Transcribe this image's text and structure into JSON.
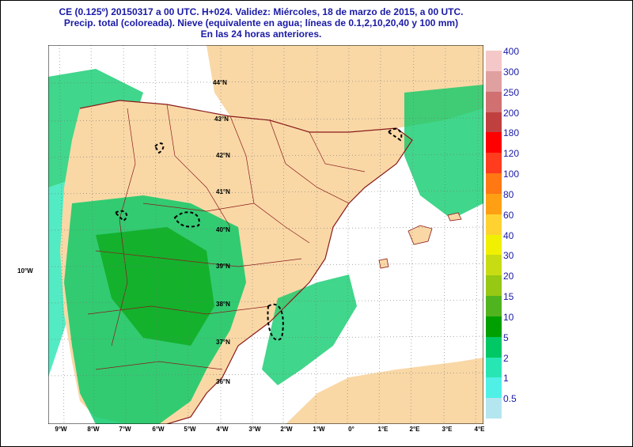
{
  "header": {
    "line1": "CE (0.125º) 20150317 a 00 UTC.  H+024. Validez: Miércoles, 18 de marzo de 2015,  a  00 UTC.",
    "line2": "Precip. total (coloreada). Nieve (equivalente en agua; líneas de 0.1,2,10,20,40 y 100 mm)",
    "line3": "En las 24 horas anteriores."
  },
  "map": {
    "lon_labels": [
      "9°W",
      "8°W",
      "7°W",
      "6°W",
      "5°W",
      "4°W",
      "3°W",
      "2°W",
      "1°W",
      "0°",
      "1°E",
      "2°E",
      "3°E",
      "4°E"
    ],
    "lat_labels": [
      "44°N",
      "43°N",
      "42°N",
      "41°N",
      "40°N",
      "39°N",
      "38°N",
      "37°N",
      "36°N"
    ],
    "side_label": "10°W"
  },
  "legend": {
    "levels": [
      "400",
      "300",
      "250",
      "200",
      "180",
      "120",
      "100",
      "80",
      "60",
      "40",
      "30",
      "20",
      "15",
      "10",
      "5",
      "2",
      "1",
      "0.5"
    ],
    "colors": [
      "#f4c8c8",
      "#e0a0a0",
      "#d07070",
      "#c04040",
      "#ff0000",
      "#ff3c1e",
      "#ff7814",
      "#ffa014",
      "#ffd232",
      "#f0f000",
      "#c8dc14",
      "#96c814",
      "#50b41e",
      "#00a000",
      "#00c864",
      "#28e6b4",
      "#50f0e6",
      "#b4e6f0"
    ]
  },
  "colors": {
    "land": "#f9d8a6",
    "sea": "#ffffff",
    "border": "#8b1a1a"
  }
}
